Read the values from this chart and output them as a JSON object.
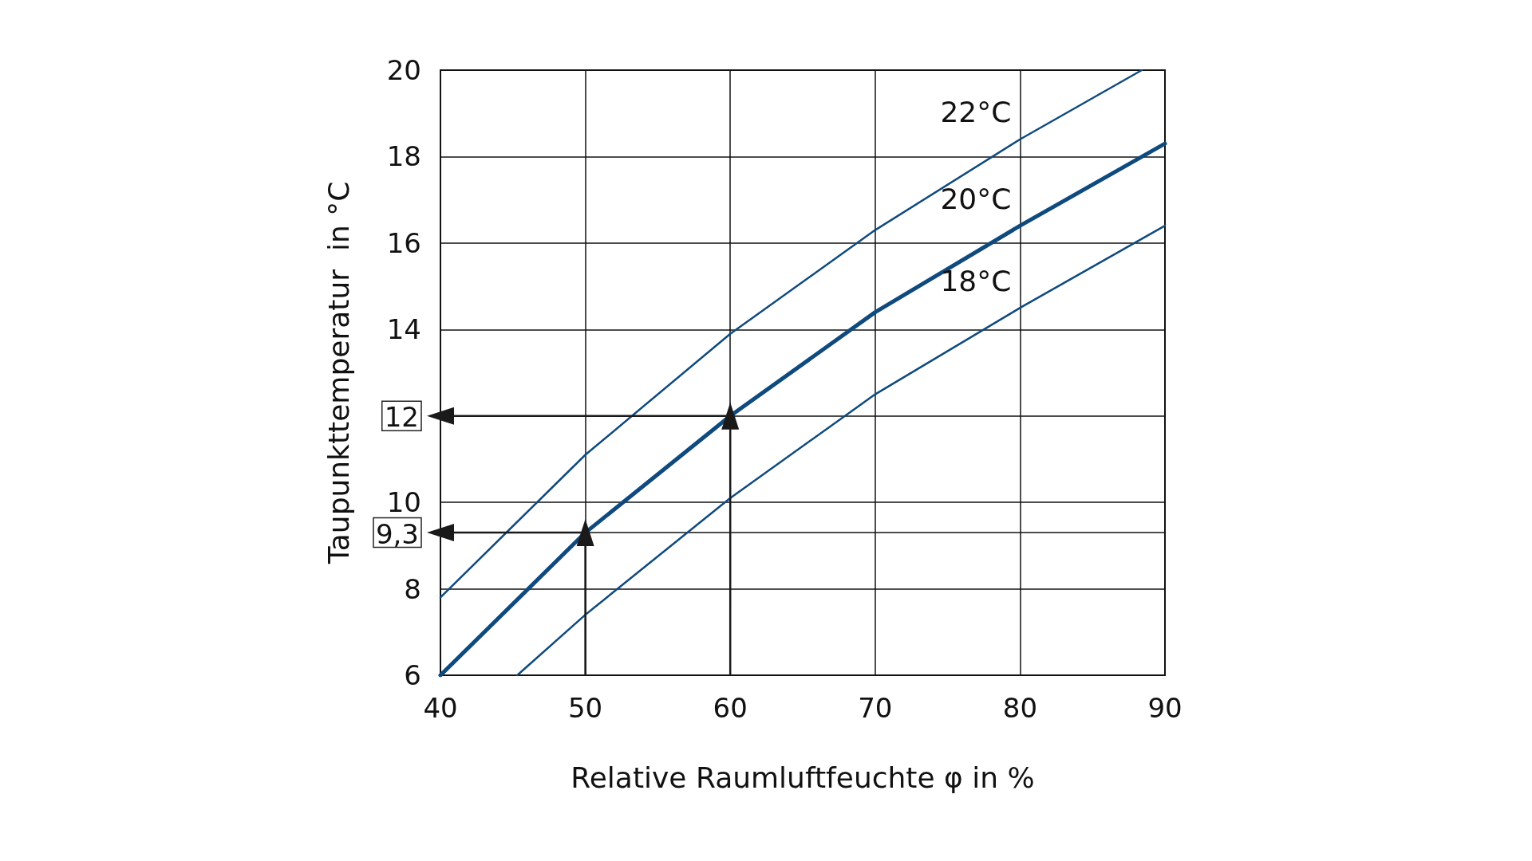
{
  "chart_data": {
    "type": "line",
    "xlabel": "Relative Raumluftfeuchte φ in %",
    "ylabel": "Taupunkttemperatur  in °C",
    "xlim": [
      40,
      90
    ],
    "xticks": [
      40,
      50,
      60,
      70,
      80,
      90
    ],
    "ylim": [
      6,
      20
    ],
    "yticks": [
      6,
      8,
      {
        "value": 9.3,
        "label": "9,3"
      },
      10,
      12,
      14,
      16,
      18,
      20
    ],
    "grid": true,
    "marker": "none",
    "legend": false,
    "series": [
      {
        "name": "22°C",
        "color": "#0f4a7e",
        "x": [
          40,
          50,
          60,
          70,
          80,
          88.4
        ],
        "values": [
          7.8,
          11.1,
          13.9,
          16.3,
          18.4,
          20.0
        ]
      },
      {
        "name": "20°C",
        "color": "#0f4a7e",
        "x": [
          40,
          50,
          60,
          70,
          80,
          90
        ],
        "values": [
          6.0,
          9.3,
          12.0,
          14.4,
          16.4,
          18.3
        ]
      },
      {
        "name": "18°C",
        "color": "#0f4a7e",
        "x": [
          45.3,
          50,
          60,
          70,
          80,
          90
        ],
        "values": [
          6.0,
          7.4,
          10.1,
          12.5,
          14.5,
          16.4
        ]
      },
      {
        "color": "#1a1a1a",
        "marker": "triangle",
        "x": [
          60,
          60,
          40
        ],
        "values": [
          6,
          12,
          12
        ]
      },
      {
        "color": "#1a1a1a",
        "marker": "triangle",
        "x": [
          50,
          50,
          40
        ],
        "values": [
          6,
          9.3,
          9.3
        ]
      }
    ]
  }
}
